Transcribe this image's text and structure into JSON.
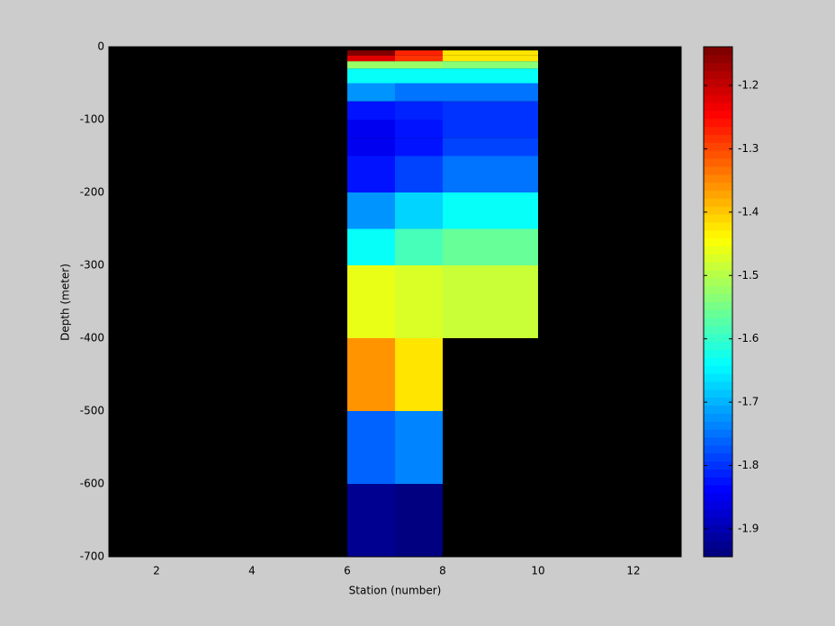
{
  "chart_data": {
    "type": "heatmap",
    "xlabel": "Station (number)",
    "ylabel": "Depth (meter)",
    "x_edges": [
      6,
      7,
      8,
      10
    ],
    "y_edges": [
      -5,
      -12,
      -20,
      -30,
      -50,
      -75,
      -100,
      -125,
      -150,
      -200,
      -250,
      -300,
      -400,
      -500,
      -600,
      -700
    ],
    "z": [
      [
        -1.15,
        -1.27,
        -1.42
      ],
      [
        -1.22,
        -1.28,
        -1.42
      ],
      [
        -1.52,
        -1.52,
        -1.53
      ],
      [
        -1.63,
        -1.63,
        -1.63
      ],
      [
        -1.73,
        -1.75,
        -1.75
      ],
      [
        -1.82,
        -1.81,
        -1.8
      ],
      [
        -1.85,
        -1.83,
        -1.8
      ],
      [
        -1.85,
        -1.83,
        -1.79
      ],
      [
        -1.82,
        -1.79,
        -1.75
      ],
      [
        -1.73,
        -1.67,
        -1.64
      ],
      [
        -1.63,
        -1.59,
        -1.56
      ],
      [
        -1.46,
        -1.47,
        -1.48
      ],
      [
        -1.36,
        -1.42,
        null
      ],
      [
        -1.76,
        -1.74,
        null
      ],
      [
        -1.93,
        -1.94,
        null
      ]
    ],
    "xlim": [
      1,
      13
    ],
    "xticks": [
      2,
      4,
      6,
      8,
      10,
      12
    ],
    "ylim": [
      -700,
      0
    ],
    "yticks": [
      0,
      -100,
      -200,
      -300,
      -400,
      -500,
      -600,
      -700
    ],
    "clim": [
      -1.944,
      -1.139
    ],
    "cticks": [
      -1.2,
      -1.3,
      -1.4,
      -1.5,
      -1.6,
      -1.7,
      -1.8,
      -1.9
    ],
    "colormap": "jet",
    "background": "#000000"
  }
}
